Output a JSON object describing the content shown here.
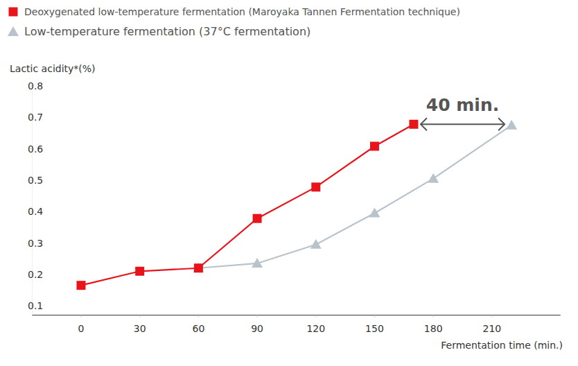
{
  "chart_data": {
    "type": "line",
    "y_label": "Lactic acidity*(%)",
    "x_label": "Fermentation time (min.)",
    "xlim": [
      -25,
      245
    ],
    "xticks": [
      0,
      30,
      60,
      90,
      120,
      150,
      180,
      210
    ],
    "ylim": [
      0.07,
      0.8
    ],
    "yticks": [
      0.1,
      0.2,
      0.3,
      0.4,
      0.5,
      0.6,
      0.7,
      0.8
    ],
    "grid": false,
    "legend": "top-left",
    "annotations": [
      {
        "text": "40 min."
      }
    ],
    "series": [
      {
        "name": "Deoxygenated low-temperature fermentation (Maroyaka Tannen Fermentation technique)",
        "color": "#e8141b",
        "marker": "square",
        "x": [
          0,
          30,
          60,
          90,
          120,
          150,
          170
        ],
        "values": [
          0.165,
          0.21,
          0.22,
          0.378,
          0.478,
          0.608,
          0.678
        ]
      },
      {
        "name": "Low-temperature fermentation (37°C fermentation)",
        "color": "#b9c3cc",
        "marker": "triangle",
        "x": [
          60,
          90,
          120,
          150,
          180,
          220
        ],
        "values": [
          0.22,
          0.235,
          0.295,
          0.395,
          0.505,
          0.675
        ]
      }
    ]
  }
}
